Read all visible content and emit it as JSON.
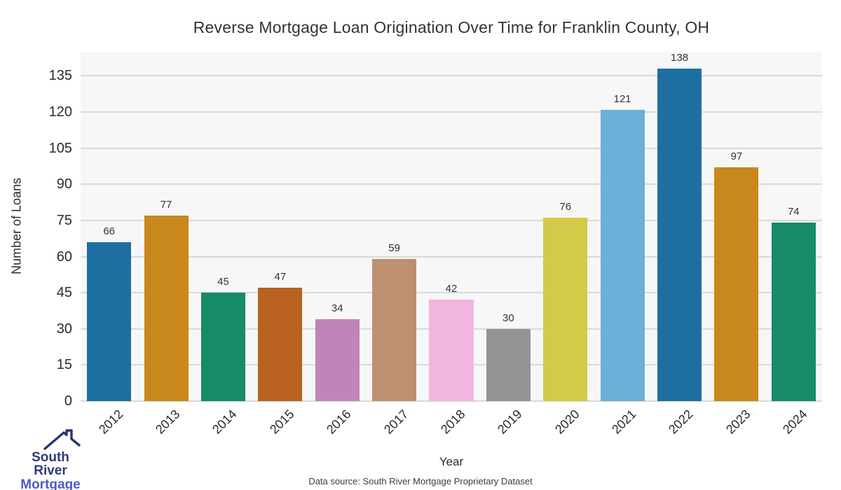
{
  "chart_data": {
    "type": "bar",
    "title": "Reverse Mortgage Loan Origination Over Time for Franklin County, OH",
    "xlabel": "Year",
    "ylabel": "Number of Loans",
    "categories": [
      "2012",
      "2013",
      "2014",
      "2015",
      "2016",
      "2017",
      "2018",
      "2019",
      "2020",
      "2021",
      "2022",
      "2023",
      "2024"
    ],
    "values": [
      66,
      77,
      45,
      47,
      34,
      59,
      42,
      30,
      76,
      121,
      138,
      97,
      74
    ],
    "bar_colors": [
      "#1e6fa1",
      "#c8881c",
      "#178a68",
      "#b9611e",
      "#c283ba",
      "#bd9170",
      "#f2b5dd",
      "#949494",
      "#d3ca48",
      "#6bb0d8",
      "#1e6fa1",
      "#c8881c",
      "#178a68"
    ],
    "yticks": [
      0,
      15,
      30,
      45,
      60,
      75,
      90,
      105,
      120,
      135
    ],
    "ylim": [
      0,
      145
    ],
    "grid": "horizontal",
    "legend": "none",
    "plot_background": "#f7f7f7",
    "gridline_color": "#d9d9d9"
  },
  "caption": {
    "text": "Data source: South River Mortgage Proprietary Dataset"
  },
  "logo": {
    "line1": "South River",
    "line2": "Mortgage",
    "color_line1": "#2d3a78",
    "color_line2": "#4a5bc8",
    "roof_color": "#2b3670"
  }
}
